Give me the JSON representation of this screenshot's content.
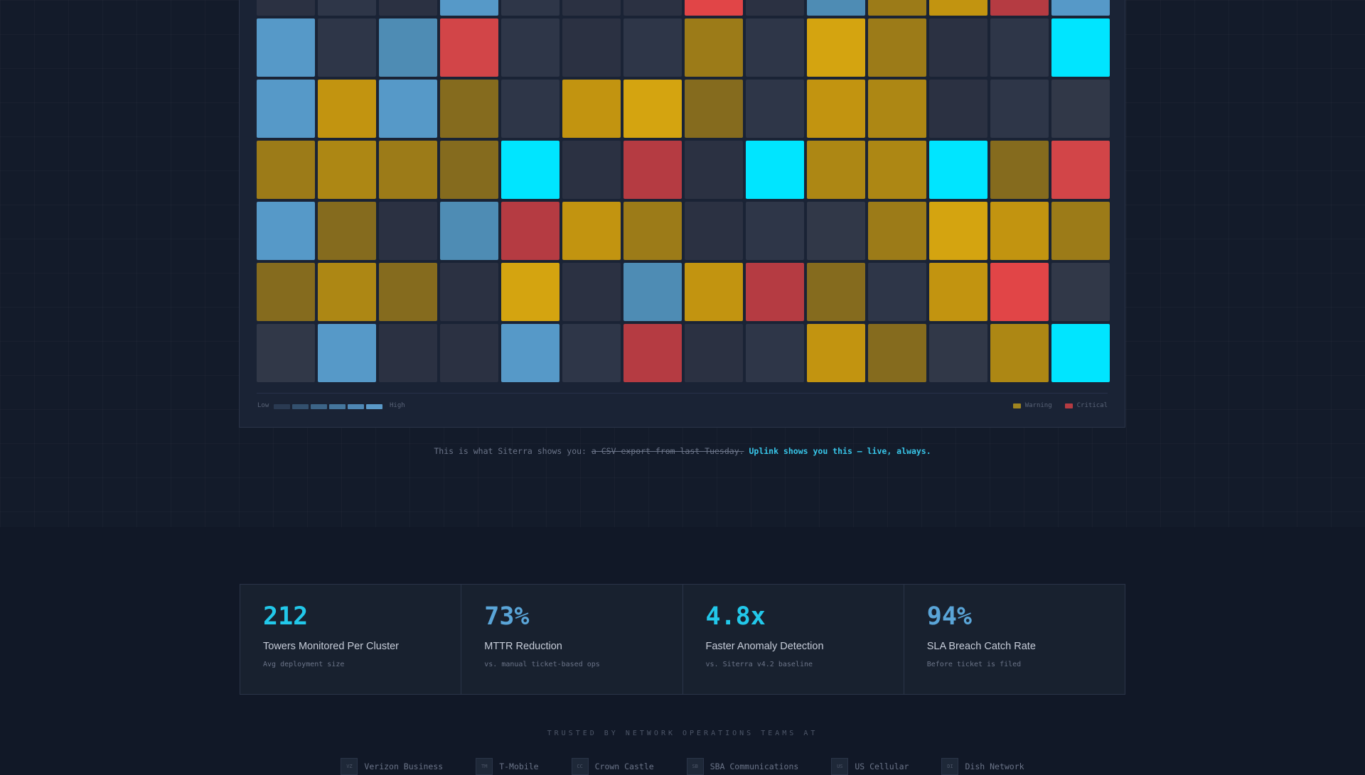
{
  "heatmap": {
    "palette": {
      "n0": "#2b3142",
      "n1": "#2e3648",
      "n2": "#313848",
      "b1": "#4e8cb4",
      "b2": "#5699c8",
      "y1": "#856b1e",
      "y2": "#9c7b18",
      "y3": "#ad8714",
      "y4": "#c29410",
      "y5": "#d4a410",
      "r1": "#b53b42",
      "r2": "#d24548",
      "r3": "#e14547",
      "c1": "#00e5ff"
    },
    "rows": [
      [
        "n0",
        "n1",
        "n0",
        "b2",
        "n1",
        "n0",
        "n0",
        "r3",
        "n0",
        "b1",
        "y2",
        "y4",
        "r1",
        "b2"
      ],
      [
        "b2",
        "n1",
        "b1",
        "r2",
        "n1",
        "n0",
        "n1",
        "y2",
        "n1",
        "y5",
        "y2",
        "n0",
        "n1",
        "c1"
      ],
      [
        "b2",
        "y4",
        "b2",
        "y1",
        "n1",
        "y4",
        "y5",
        "y1",
        "n1",
        "y4",
        "y3",
        "n0",
        "n1",
        "n2"
      ],
      [
        "y2",
        "y3",
        "y2",
        "y1",
        "c1",
        "n0",
        "r1",
        "n0",
        "c1",
        "y3",
        "y3",
        "c1",
        "y1",
        "r2"
      ],
      [
        "b2",
        "y1",
        "n0",
        "b1",
        "r1",
        "y4",
        "y2",
        "n0",
        "n1",
        "n2",
        "y2",
        "y5",
        "y4",
        "y2"
      ],
      [
        "y1",
        "y3",
        "y1",
        "n0",
        "y5",
        "n0",
        "b1",
        "y4",
        "r1",
        "y1",
        "n1",
        "y4",
        "r3",
        "n2"
      ],
      [
        "n2",
        "b2",
        "n0",
        "n0",
        "b2",
        "n1",
        "r1",
        "n0",
        "n1",
        "y4",
        "y1",
        "n2",
        "y3",
        "c1"
      ]
    ]
  },
  "legend": {
    "low_label": "Low",
    "high_label": "High",
    "scale": [
      "#2a3a52",
      "#33506e",
      "#3c6487",
      "#45769d",
      "#4e87b4",
      "#5a99c8"
    ],
    "warning_label": "Warning",
    "warning_color": "#a08520",
    "critical_label": "Critical",
    "critical_color": "#b53b42"
  },
  "caption": {
    "prefix": "This is what Siterra shows you: ",
    "struck": "a CSV export from last Tuesday.",
    "highlight": " Uplink shows you this — live, always."
  },
  "stats": [
    {
      "value": "212",
      "label": "Towers Monitored Per Cluster",
      "sub": "Avg deployment size",
      "accent": "cyan"
    },
    {
      "value": "73%",
      "label": "MTTR Reduction",
      "sub": "vs. manual ticket-based ops",
      "accent": "blue"
    },
    {
      "value": "4.8x",
      "label": "Faster Anomaly Detection",
      "sub": "vs. Siterra v4.2 baseline",
      "accent": "cyan"
    },
    {
      "value": "94%",
      "label": "SLA Breach Catch Rate",
      "sub": "Before ticket is filed",
      "accent": "blue"
    }
  ],
  "trusted": {
    "heading": "TRUSTED BY NETWORK OPERATIONS TEAMS AT",
    "logos": [
      {
        "badge": "VZ",
        "name": "Verizon Business"
      },
      {
        "badge": "TM",
        "name": "T-Mobile"
      },
      {
        "badge": "CC",
        "name": "Crown Castle"
      },
      {
        "badge": "SB",
        "name": "SBA Communications"
      },
      {
        "badge": "US",
        "name": "US Cellular"
      },
      {
        "badge": "DI",
        "name": "Dish Network"
      }
    ]
  }
}
